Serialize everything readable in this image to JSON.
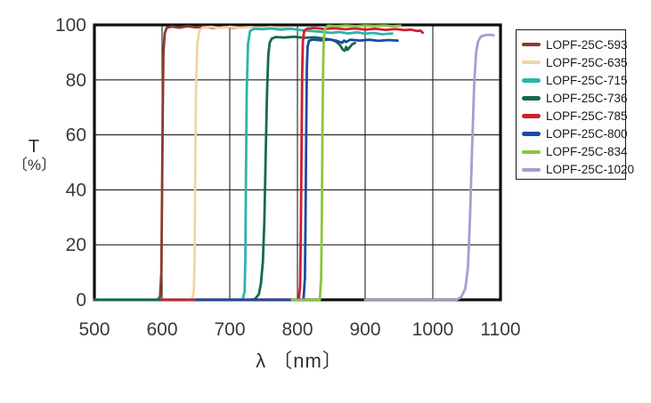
{
  "chart_data": {
    "type": "line",
    "title": "",
    "xlabel": "λ 〔nm〕",
    "ylabel_line1": "T",
    "ylabel_line2": "〔%〕",
    "xlim": [
      500,
      1100
    ],
    "ylim": [
      0,
      100
    ],
    "x_ticks": [
      500,
      600,
      700,
      800,
      900,
      1000,
      1100
    ],
    "y_ticks": [
      0,
      20,
      40,
      60,
      80,
      100
    ],
    "grid": true,
    "legend_position": "outside-right",
    "frame_color": "#0e0e0e",
    "grid_color": "#1f1f1f",
    "tick_label_color": "#3a3a3a",
    "series": [
      {
        "name": "LOPF-25C-593",
        "color": "#8a3c2b",
        "points": [
          [
            500,
            0
          ],
          [
            593,
            0
          ],
          [
            597,
            1
          ],
          [
            599,
            10
          ],
          [
            600,
            40
          ],
          [
            601,
            70
          ],
          [
            602,
            90
          ],
          [
            604,
            97
          ],
          [
            607,
            99
          ],
          [
            615,
            99.4
          ],
          [
            625,
            99.0
          ],
          [
            638,
            99.5
          ],
          [
            650,
            99.1
          ],
          [
            662,
            99.4
          ],
          [
            675,
            98.9
          ],
          [
            690,
            99.3
          ],
          [
            705,
            99.0
          ],
          [
            720,
            99.2
          ]
        ]
      },
      {
        "name": "LOPF-25C-635",
        "color": "#f1d5a5",
        "points": [
          [
            500,
            0
          ],
          [
            644,
            0
          ],
          [
            647,
            3
          ],
          [
            648,
            15
          ],
          [
            649,
            45
          ],
          [
            650,
            75
          ],
          [
            652,
            93
          ],
          [
            655,
            98
          ],
          [
            660,
            99
          ],
          [
            672,
            99.3
          ],
          [
            685,
            98.9
          ],
          [
            700,
            99.3
          ],
          [
            715,
            99.0
          ],
          [
            730,
            99.2
          ],
          [
            745,
            98.9
          ],
          [
            760,
            99.2
          ],
          [
            775,
            99.0
          ],
          [
            790,
            99.1
          ]
        ]
      },
      {
        "name": "LOPF-25C-715",
        "color": "#2cb4ad",
        "points": [
          [
            500,
            0
          ],
          [
            719,
            0
          ],
          [
            722,
            3
          ],
          [
            723,
            15
          ],
          [
            724,
            45
          ],
          [
            725,
            75
          ],
          [
            727,
            93
          ],
          [
            730,
            97.8
          ],
          [
            736,
            98.6
          ],
          [
            748,
            98.4
          ],
          [
            760,
            98.7
          ],
          [
            775,
            98.3
          ],
          [
            790,
            98.6
          ],
          [
            805,
            98.1
          ],
          [
            820,
            97.8
          ],
          [
            835,
            97.5
          ],
          [
            850,
            97.1
          ],
          [
            862,
            97.4
          ],
          [
            875,
            96.9
          ],
          [
            888,
            97.3
          ],
          [
            900,
            96.8
          ],
          [
            912,
            97.1
          ],
          [
            925,
            96.6
          ],
          [
            940,
            96.9
          ]
        ]
      },
      {
        "name": "LOPF-25C-736",
        "color": "#17694e",
        "points": [
          [
            500,
            0
          ],
          [
            733,
            0
          ],
          [
            738,
            0.5
          ],
          [
            743,
            2
          ],
          [
            746,
            6
          ],
          [
            749,
            14
          ],
          [
            751,
            28
          ],
          [
            753,
            52
          ],
          [
            755,
            75
          ],
          [
            757,
            89
          ],
          [
            759,
            93.5
          ],
          [
            762,
            95
          ],
          [
            768,
            95.6
          ],
          [
            780,
            95.4
          ],
          [
            795,
            95.7
          ],
          [
            810,
            95.3
          ],
          [
            825,
            95.5
          ],
          [
            840,
            95.0
          ],
          [
            852,
            94.5
          ],
          [
            858,
            93.8
          ],
          [
            863,
            92.6
          ],
          [
            867,
            91.0
          ],
          [
            870,
            90.6
          ],
          [
            872,
            92.0
          ],
          [
            874,
            90.9
          ],
          [
            877,
            91.8
          ],
          [
            881,
            93.0
          ],
          [
            885,
            93.4
          ]
        ]
      },
      {
        "name": "LOPF-25C-785",
        "color": "#d01f2f",
        "points": [
          [
            600,
            0
          ],
          [
            802,
            0
          ],
          [
            804,
            5
          ],
          [
            805,
            25
          ],
          [
            806,
            55
          ],
          [
            807,
            82
          ],
          [
            808,
            94
          ],
          [
            810,
            97.8
          ],
          [
            814,
            98.6
          ],
          [
            825,
            98.9
          ],
          [
            840,
            98.5
          ],
          [
            855,
            98.8
          ],
          [
            870,
            98.4
          ],
          [
            885,
            98.7
          ],
          [
            900,
            98.3
          ],
          [
            915,
            98.6
          ],
          [
            930,
            98.2
          ],
          [
            945,
            98.5
          ],
          [
            958,
            98.1
          ],
          [
            968,
            98.3
          ],
          [
            976,
            97.8
          ],
          [
            982,
            97.9
          ],
          [
            985,
            97.2
          ]
        ]
      },
      {
        "name": "LOPF-25C-800",
        "color": "#1b4aa2",
        "points": [
          [
            650,
            0
          ],
          [
            809,
            0
          ],
          [
            811,
            8
          ],
          [
            812,
            30
          ],
          [
            813,
            62
          ],
          [
            814,
            85
          ],
          [
            815,
            92
          ],
          [
            817,
            94.2
          ],
          [
            822,
            94.7
          ],
          [
            835,
            94.4
          ],
          [
            848,
            94.7
          ],
          [
            858,
            94.2
          ],
          [
            866,
            93.5
          ],
          [
            869,
            94.3
          ],
          [
            872,
            93.8
          ],
          [
            878,
            94.6
          ],
          [
            892,
            94.3
          ],
          [
            906,
            94.6
          ],
          [
            920,
            94.2
          ],
          [
            934,
            94.5
          ],
          [
            948,
            94.3
          ]
        ]
      },
      {
        "name": "LOPF-25C-834",
        "color": "#8bc53f",
        "points": [
          [
            792,
            0
          ],
          [
            833,
            0
          ],
          [
            835,
            8
          ],
          [
            836,
            30
          ],
          [
            837,
            62
          ],
          [
            838,
            86
          ],
          [
            839,
            95
          ],
          [
            841,
            98.8
          ],
          [
            845,
            99.7
          ],
          [
            858,
            99.5
          ],
          [
            872,
            99.8
          ],
          [
            886,
            99.5
          ],
          [
            900,
            99.8
          ],
          [
            914,
            99.6
          ],
          [
            928,
            99.8
          ],
          [
            940,
            99.5
          ],
          [
            952,
            99.7
          ]
        ]
      },
      {
        "name": "LOPF-25C-1020",
        "color": "#a79dce",
        "points": [
          [
            900,
            0
          ],
          [
            1035,
            0
          ],
          [
            1042,
            1
          ],
          [
            1048,
            4
          ],
          [
            1052,
            12
          ],
          [
            1055,
            30
          ],
          [
            1058,
            55
          ],
          [
            1061,
            78
          ],
          [
            1064,
            90
          ],
          [
            1067,
            94
          ],
          [
            1071,
            95.8
          ],
          [
            1078,
            96.3
          ],
          [
            1085,
            96.4
          ],
          [
            1090,
            96.2
          ]
        ]
      }
    ]
  }
}
